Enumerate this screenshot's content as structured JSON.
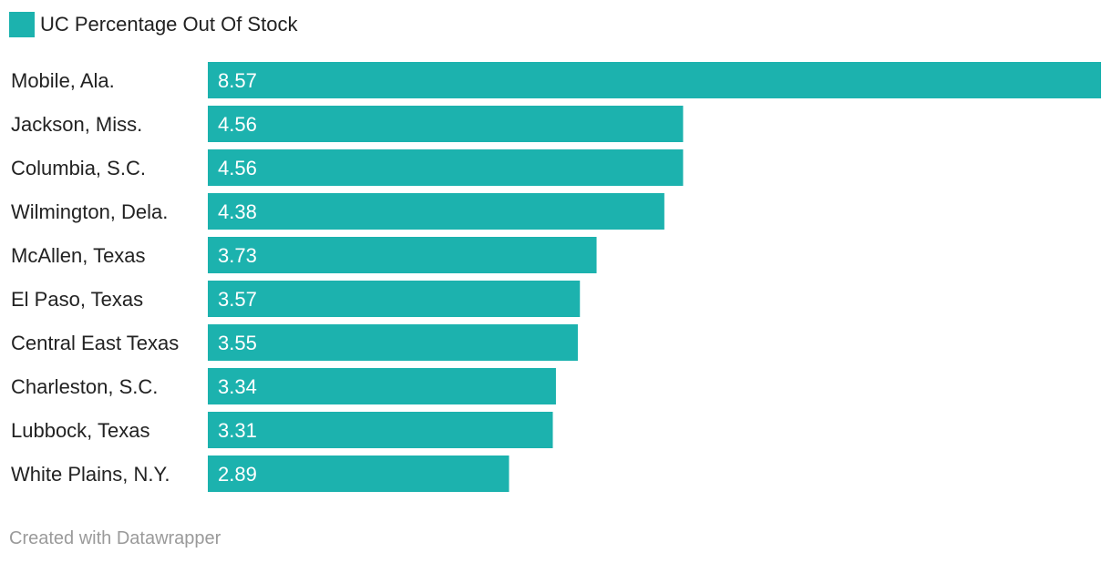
{
  "legend": {
    "label": "UC Percentage Out Of Stock"
  },
  "footer": {
    "credit": "Created with Datawrapper"
  },
  "colors": {
    "bar": "#1cb2ae",
    "text": "#222222",
    "footer": "#9a9a9a",
    "bar_label": "#ffffff"
  },
  "chart_data": {
    "type": "bar",
    "orientation": "horizontal",
    "categories": [
      "Mobile, Ala.",
      "Jackson, Miss.",
      "Columbia, S.C.",
      "Wilmington, Dela.",
      "McAllen, Texas",
      "El Paso, Texas",
      "Central East Texas",
      "Charleston, S.C.",
      "Lubbock, Texas",
      "White Plains, N.Y."
    ],
    "series": [
      {
        "name": "UC Percentage Out Of Stock",
        "values": [
          8.57,
          4.56,
          4.56,
          4.38,
          3.73,
          3.57,
          3.55,
          3.34,
          3.31,
          2.89
        ]
      }
    ],
    "xlim": [
      0,
      8.57
    ],
    "grid": false,
    "legend_position": "top-left",
    "data_labels": true
  }
}
